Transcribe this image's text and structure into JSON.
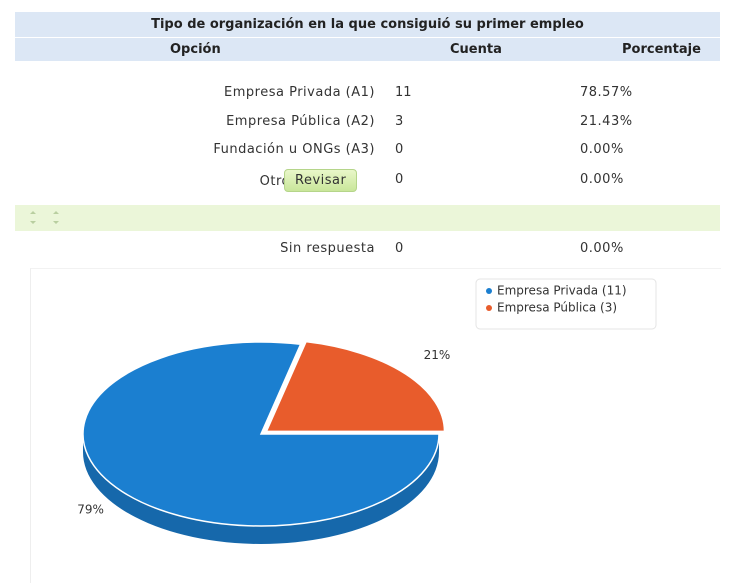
{
  "table": {
    "title": "Tipo de organización en la que consiguió su primer empleo",
    "headers": [
      "Opción",
      "Cuenta",
      "Porcentaje"
    ],
    "rows": [
      [
        "Empresa Privada (A1)",
        11,
        "78.57%"
      ],
      [
        "Empresa Pública (A2)",
        3,
        "21.43%"
      ],
      [
        "Fundación u ONGs (A3)",
        0,
        "0.00%"
      ],
      [
        "Otro",
        0,
        "0.00%"
      ]
    ],
    "no_answer": [
      "Sin respuesta",
      0,
      "0.00%"
    ]
  },
  "button": "Revisar",
  "chart_data": {
    "type": "pie",
    "categories": [
      "Empresa Privada (11)",
      "Empresa Pública (3)"
    ],
    "values": [
      78.57,
      21.43
    ],
    "value_labels": [
      "79%",
      "21%"
    ],
    "colors": [
      "#1b7fd0",
      "#e85c2c"
    ]
  }
}
